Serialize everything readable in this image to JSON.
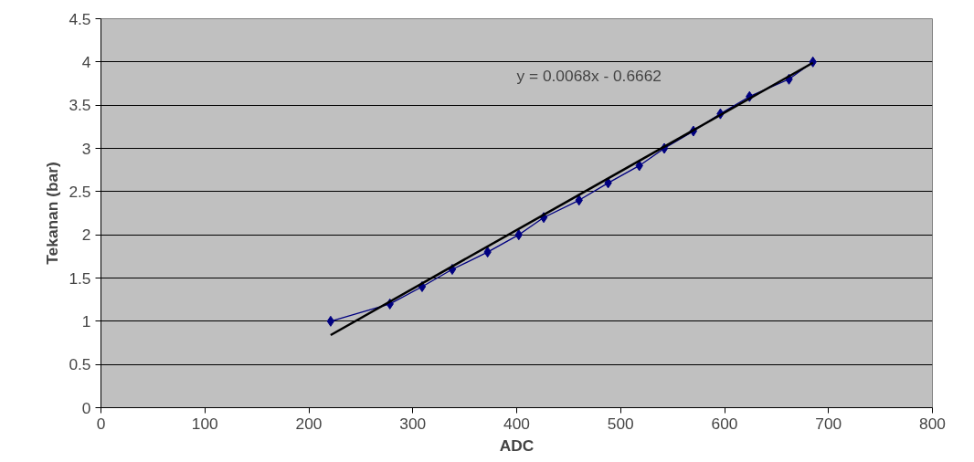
{
  "chart_data": {
    "type": "line",
    "xlabel": "ADC",
    "ylabel": "Tekanan (bar)",
    "xlim": [
      0,
      800
    ],
    "xticks": [
      0,
      100,
      200,
      300,
      400,
      500,
      600,
      700,
      800
    ],
    "ylim": [
      0,
      4.5
    ],
    "yticks": [
      0,
      0.5,
      1,
      1.5,
      2,
      2.5,
      3,
      3.5,
      4,
      4.5
    ],
    "grid": "y",
    "annotations": [
      "y = 0.0068x - 0.6662"
    ],
    "series": [
      {
        "marker": "diamond",
        "color": "#000080",
        "x": [
          221,
          278,
          309,
          338,
          372,
          402,
          426,
          460,
          488,
          518,
          542,
          570,
          596,
          624,
          662,
          685
        ],
        "values": [
          1,
          1.2,
          1.4,
          1.6,
          1.8,
          2,
          2.2,
          2.4,
          2.6,
          2.8,
          3,
          3.2,
          3.4,
          3.6,
          3.8,
          4
        ]
      },
      {
        "marker": "none",
        "color": "#000000",
        "x": [
          221,
          685
        ],
        "values": [
          0.84,
          3.99
        ]
      }
    ]
  }
}
